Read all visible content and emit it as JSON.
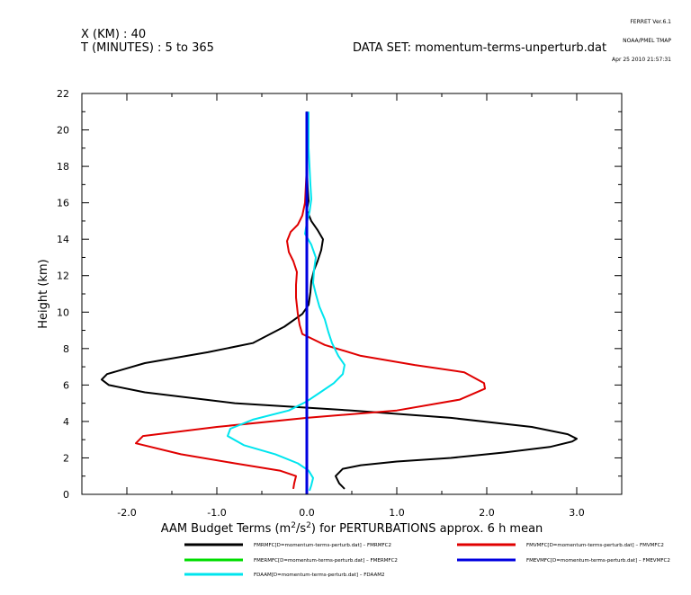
{
  "stamp": {
    "line1": "FERRET Ver.6.1",
    "line2": "NOAA/PMEL TMAP",
    "line3": "Apr 25 2010 21:57:31"
  },
  "header": {
    "x_line": "X (KM) : 40",
    "t_line": "T (MINUTES) : 5 to 365",
    "dataset": "DATA SET: momentum-terms-unperturb.dat"
  },
  "chart_data": {
    "type": "line",
    "xlabel_parts": {
      "pre": "AAM Budget Terms (m",
      "sup1": "2",
      "mid": "/s",
      "sup2": "2",
      "post": ") for PERTURBATIONS approx. 6 h mean"
    },
    "ylabel": "Height (km)",
    "xlim": [
      -2.5,
      3.5
    ],
    "ylim": [
      0,
      22
    ],
    "xticks": [
      -2.0,
      -1.0,
      0.0,
      1.0,
      2.0,
      3.0
    ],
    "xtick_labels": [
      "-2.0",
      "-1.0",
      "0.0",
      "1.0",
      "2.0",
      "3.0"
    ],
    "yticks": [
      0,
      2,
      4,
      6,
      8,
      10,
      12,
      14,
      16,
      18,
      20,
      22
    ],
    "ytick_labels": [
      "0",
      "2",
      "4",
      "6",
      "8",
      "10",
      "12",
      "14",
      "16",
      "18",
      "20",
      "22"
    ],
    "series": [
      {
        "name": "FMRMFC[D=momentum-terms-perturb.dat] – FMRMFC2",
        "color": "#000000",
        "points": [
          [
            0.42,
            0.3
          ],
          [
            0.36,
            0.6
          ],
          [
            0.32,
            1.0
          ],
          [
            0.4,
            1.4
          ],
          [
            0.6,
            1.6
          ],
          [
            1.0,
            1.8
          ],
          [
            1.6,
            2.0
          ],
          [
            2.2,
            2.3
          ],
          [
            2.7,
            2.6
          ],
          [
            2.95,
            2.9
          ],
          [
            3.0,
            3.05
          ],
          [
            2.9,
            3.3
          ],
          [
            2.5,
            3.7
          ],
          [
            1.6,
            4.2
          ],
          [
            0.5,
            4.6
          ],
          [
            -0.8,
            5.0
          ],
          [
            -1.8,
            5.6
          ],
          [
            -2.2,
            6.0
          ],
          [
            -2.28,
            6.3
          ],
          [
            -2.22,
            6.6
          ],
          [
            -1.8,
            7.2
          ],
          [
            -1.1,
            7.8
          ],
          [
            -0.6,
            8.3
          ],
          [
            -0.25,
            9.2
          ],
          [
            -0.05,
            9.9
          ],
          [
            0.02,
            10.4
          ],
          [
            0.04,
            11.1
          ],
          [
            0.05,
            11.7
          ],
          [
            0.08,
            12.3
          ],
          [
            0.12,
            12.8
          ],
          [
            0.16,
            13.4
          ],
          [
            0.18,
            14.0
          ],
          [
            0.12,
            14.5
          ],
          [
            0.05,
            15.0
          ],
          [
            0.0,
            15.6
          ],
          [
            0.02,
            16.1
          ],
          [
            0.01,
            16.8
          ],
          [
            0.0,
            18.0
          ],
          [
            0.0,
            19.5
          ],
          [
            0.0,
            20.5
          ],
          [
            0.0,
            21.0
          ]
        ]
      },
      {
        "name": "FMVMFC[D=momentum-terms-perturb.dat] – FMVMFC2",
        "color": "#e00000",
        "points": [
          [
            -0.15,
            0.3
          ],
          [
            -0.14,
            0.6
          ],
          [
            -0.12,
            1.0
          ],
          [
            -0.3,
            1.3
          ],
          [
            -0.8,
            1.7
          ],
          [
            -1.4,
            2.2
          ],
          [
            -1.9,
            2.8
          ],
          [
            -1.82,
            3.2
          ],
          [
            -1.0,
            3.7
          ],
          [
            0.0,
            4.2
          ],
          [
            1.0,
            4.6
          ],
          [
            1.7,
            5.2
          ],
          [
            1.98,
            5.8
          ],
          [
            1.97,
            6.1
          ],
          [
            1.75,
            6.7
          ],
          [
            1.2,
            7.1
          ],
          [
            0.6,
            7.6
          ],
          [
            0.2,
            8.2
          ],
          [
            -0.05,
            8.8
          ],
          [
            -0.08,
            9.3
          ],
          [
            -0.1,
            9.9
          ],
          [
            -0.12,
            10.8
          ],
          [
            -0.12,
            11.5
          ],
          [
            -0.11,
            12.2
          ],
          [
            -0.15,
            12.8
          ],
          [
            -0.2,
            13.3
          ],
          [
            -0.22,
            13.9
          ],
          [
            -0.18,
            14.4
          ],
          [
            -0.1,
            14.8
          ],
          [
            -0.05,
            15.3
          ],
          [
            -0.02,
            16.0
          ],
          [
            -0.01,
            17.0
          ],
          [
            0.0,
            18.0
          ],
          [
            0.0,
            19.0
          ],
          [
            0.0,
            20.0
          ],
          [
            0.0,
            21.0
          ]
        ]
      },
      {
        "name": "FMERMFC[D=momentum-terms-perturb.dat] – FMERMFC2",
        "color": "#00dd00",
        "points": [
          [
            0.0,
            0.0
          ],
          [
            0.0,
            21.0
          ]
        ]
      },
      {
        "name": "FMEVMFC[D=momentum-terms-perturb.dat] – FMEVMFC2",
        "color": "#0000e0",
        "points": [
          [
            0.0,
            0.0
          ],
          [
            0.0,
            21.0
          ]
        ]
      },
      {
        "name": "FDAAM[D=momentum-terms-perturb.dat] – FDAAM2",
        "color": "#00e5ee",
        "points": [
          [
            0.03,
            0.2
          ],
          [
            0.05,
            0.5
          ],
          [
            0.07,
            0.9
          ],
          [
            0.02,
            1.3
          ],
          [
            -0.1,
            1.7
          ],
          [
            -0.35,
            2.2
          ],
          [
            -0.7,
            2.7
          ],
          [
            -0.88,
            3.2
          ],
          [
            -0.85,
            3.6
          ],
          [
            -0.6,
            4.1
          ],
          [
            -0.2,
            4.6
          ],
          [
            0.0,
            5.1
          ],
          [
            0.15,
            5.6
          ],
          [
            0.3,
            6.1
          ],
          [
            0.4,
            6.6
          ],
          [
            0.42,
            7.1
          ],
          [
            0.35,
            7.6
          ],
          [
            0.28,
            8.3
          ],
          [
            0.24,
            8.9
          ],
          [
            0.2,
            9.6
          ],
          [
            0.14,
            10.3
          ],
          [
            0.1,
            11.0
          ],
          [
            0.07,
            11.6
          ],
          [
            0.08,
            12.3
          ],
          [
            0.1,
            13.0
          ],
          [
            0.05,
            13.7
          ],
          [
            -0.02,
            14.3
          ],
          [
            0.0,
            14.9
          ],
          [
            0.03,
            15.5
          ],
          [
            0.05,
            16.2
          ],
          [
            0.04,
            17.0
          ],
          [
            0.03,
            18.0
          ],
          [
            0.02,
            19.0
          ],
          [
            0.02,
            20.0
          ],
          [
            0.02,
            21.0
          ]
        ]
      }
    ]
  }
}
